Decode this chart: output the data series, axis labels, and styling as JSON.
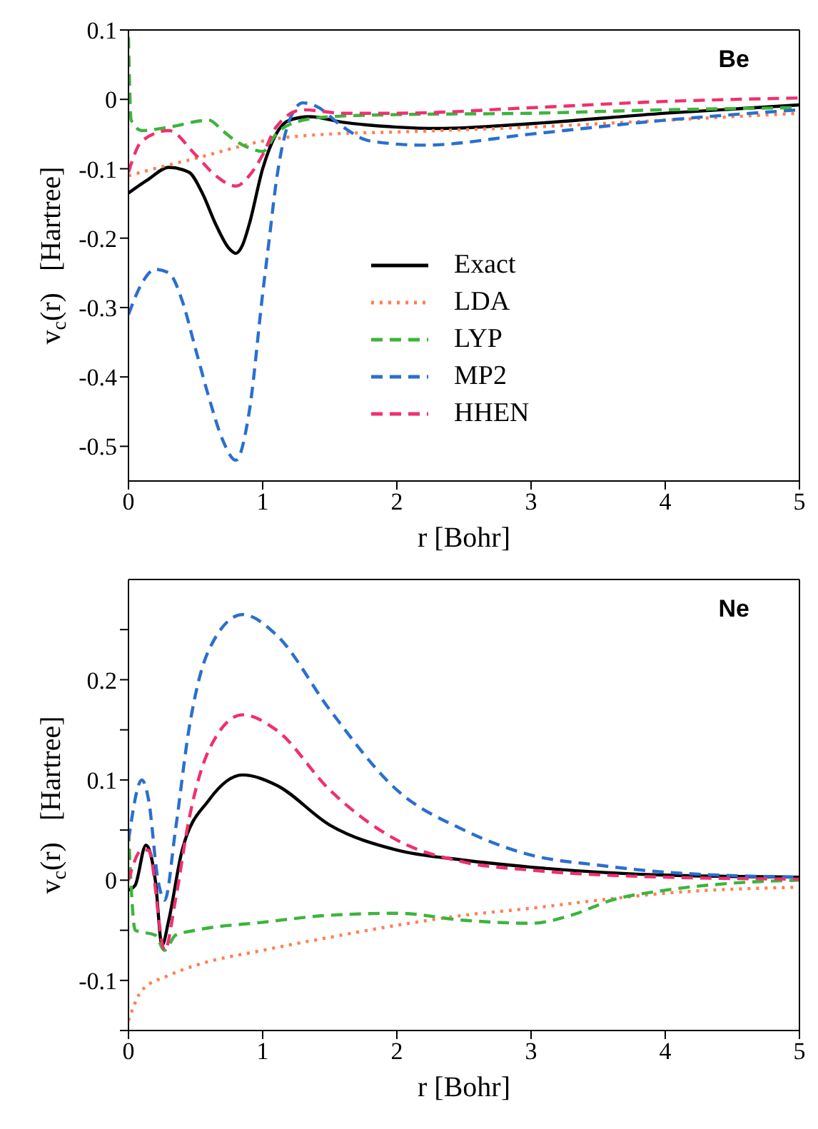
{
  "chart_data": [
    {
      "type": "line",
      "title": "Be",
      "xlabel": "r   [Bohr]",
      "ylabel": "v$_{c}$(r)   [Hartree]",
      "xlim": [
        0,
        5
      ],
      "xticks": [
        0,
        1,
        2,
        3,
        4,
        5
      ],
      "ylim": [
        -0.55,
        0.1
      ],
      "yticks": [
        -0.5,
        -0.4,
        -0.3,
        -0.2,
        -0.1,
        0,
        0.1
      ],
      "grid": false,
      "legend": "right",
      "marker": "none",
      "series": [
        {
          "name": "Exact",
          "color": "#000000",
          "line_style": "solid",
          "x": [
            0,
            0.15,
            0.3,
            0.45,
            0.55,
            0.65,
            0.75,
            0.8,
            0.85,
            0.9,
            1.0,
            1.1,
            1.2,
            1.35,
            1.6,
            2.0,
            2.3,
            3,
            4,
            5
          ],
          "values": [
            -0.135,
            -0.115,
            -0.098,
            -0.105,
            -0.135,
            -0.18,
            -0.215,
            -0.222,
            -0.21,
            -0.18,
            -0.1,
            -0.05,
            -0.03,
            -0.025,
            -0.033,
            -0.04,
            -0.042,
            -0.035,
            -0.02,
            -0.008
          ]
        },
        {
          "name": "LDA",
          "color": "#ff7f50",
          "line_style": "dotted",
          "x": [
            0,
            0.25,
            0.5,
            0.75,
            1,
            1.5,
            2,
            3,
            4,
            5
          ],
          "values": [
            -0.11,
            -0.097,
            -0.085,
            -0.072,
            -0.06,
            -0.05,
            -0.047,
            -0.04,
            -0.03,
            -0.02
          ]
        },
        {
          "name": "LYP",
          "color": "#3cb43c",
          "line_style": "dashed",
          "x": [
            0,
            0.02,
            0.1,
            0.3,
            0.6,
            0.7,
            0.8,
            0.9,
            1.0,
            1.1,
            1.3,
            1.5,
            2,
            3,
            4,
            5
          ],
          "values": [
            0.09,
            -0.03,
            -0.045,
            -0.04,
            -0.03,
            -0.045,
            -0.06,
            -0.07,
            -0.075,
            -0.05,
            -0.03,
            -0.025,
            -0.022,
            -0.02,
            -0.015,
            -0.012
          ]
        },
        {
          "name": "MP2",
          "color": "#2a6fce",
          "line_style": "dashed",
          "x": [
            0,
            0.1,
            0.2,
            0.3,
            0.4,
            0.5,
            0.6,
            0.7,
            0.8,
            0.9,
            1.0,
            1.05,
            1.1,
            1.2,
            1.3,
            1.4,
            1.6,
            1.8,
            2.2,
            3,
            4,
            5
          ],
          "values": [
            -0.31,
            -0.265,
            -0.245,
            -0.25,
            -0.29,
            -0.36,
            -0.43,
            -0.49,
            -0.52,
            -0.45,
            -0.28,
            -0.2,
            -0.12,
            -0.03,
            -0.005,
            -0.01,
            -0.04,
            -0.06,
            -0.066,
            -0.05,
            -0.03,
            -0.015
          ]
        },
        {
          "name": "HHEN",
          "color": "#f0306e",
          "line_style": "dashed",
          "x": [
            0,
            0.1,
            0.3,
            0.5,
            0.65,
            0.8,
            0.9,
            1.0,
            1.1,
            1.3,
            1.6,
            2,
            3,
            4,
            5
          ],
          "values": [
            -0.105,
            -0.06,
            -0.045,
            -0.08,
            -0.11,
            -0.125,
            -0.11,
            -0.08,
            -0.04,
            -0.015,
            -0.02,
            -0.02,
            -0.012,
            -0.003,
            0.002
          ]
        }
      ]
    },
    {
      "type": "line",
      "title": "Ne",
      "xlabel": "r   [Bohr]",
      "ylabel": "v$_{c}$(r)   [Hartree]",
      "xlim": [
        0,
        5
      ],
      "xticks": [
        0,
        1,
        2,
        3,
        4,
        5
      ],
      "ylim": [
        -0.15,
        0.3
      ],
      "yticks": [
        {
          "value": -0.15,
          "label": null
        },
        -0.1,
        {
          "value": -0.05,
          "label": null
        },
        0,
        {
          "value": 0.05,
          "label": null
        },
        0.1,
        {
          "value": 0.15,
          "label": null
        },
        0.2,
        {
          "value": 0.25,
          "label": null
        }
      ],
      "grid": false,
      "legend": false,
      "marker": "none",
      "series": [
        {
          "color": "#000000",
          "line_style": "solid",
          "x": [
            0,
            0.05,
            0.13,
            0.2,
            0.25,
            0.3,
            0.4,
            0.6,
            0.85,
            1.1,
            1.5,
            2,
            2.5,
            3,
            4,
            5
          ],
          "values": [
            -0.01,
            -0.005,
            0.035,
            0.0,
            -0.065,
            -0.04,
            0.03,
            0.08,
            0.105,
            0.095,
            0.055,
            0.03,
            0.02,
            0.013,
            0.005,
            0.003
          ]
        },
        {
          "color": "#ff7f50",
          "line_style": "dotted",
          "x": [
            0,
            0.1,
            0.3,
            0.5,
            1,
            1.5,
            2,
            2.5,
            3,
            3.5,
            4,
            5
          ],
          "values": [
            -0.14,
            -0.11,
            -0.095,
            -0.085,
            -0.07,
            -0.057,
            -0.045,
            -0.035,
            -0.028,
            -0.02,
            -0.013,
            -0.007
          ]
        },
        {
          "color": "#3cb43c",
          "line_style": "dashed",
          "x": [
            0,
            0.05,
            0.2,
            0.27,
            0.35,
            0.5,
            1,
            1.5,
            2,
            2.5,
            3,
            3.3,
            3.6,
            4,
            4.5,
            5
          ],
          "values": [
            0.05,
            -0.05,
            -0.055,
            -0.07,
            -0.055,
            -0.05,
            -0.042,
            -0.035,
            -0.033,
            -0.04,
            -0.043,
            -0.035,
            -0.02,
            -0.01,
            -0.003,
            0.0
          ]
        },
        {
          "color": "#2a6fce",
          "line_style": "dashed",
          "x": [
            0,
            0.1,
            0.15,
            0.22,
            0.27,
            0.35,
            0.45,
            0.6,
            0.85,
            1.1,
            1.5,
            2,
            2.5,
            3,
            3.5,
            4,
            5
          ],
          "values": [
            0.04,
            0.1,
            0.08,
            0.0,
            -0.02,
            0.05,
            0.15,
            0.23,
            0.265,
            0.245,
            0.17,
            0.09,
            0.05,
            0.025,
            0.015,
            0.008,
            0.003
          ]
        },
        {
          "color": "#f0306e",
          "line_style": "dashed",
          "x": [
            0,
            0.1,
            0.15,
            0.27,
            0.35,
            0.45,
            0.6,
            0.85,
            1.1,
            1.5,
            2,
            2.5,
            3,
            4,
            5
          ],
          "values": [
            0.0,
            0.03,
            0.03,
            -0.07,
            -0.02,
            0.06,
            0.13,
            0.165,
            0.15,
            0.09,
            0.04,
            0.018,
            0.01,
            0.003,
            0.001
          ]
        }
      ]
    }
  ]
}
